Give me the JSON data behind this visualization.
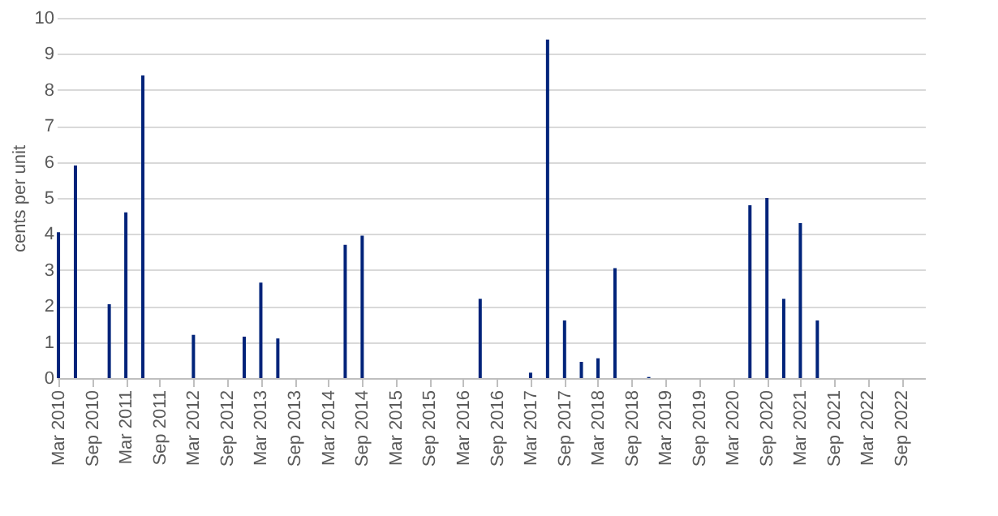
{
  "chart_data": {
    "type": "bar",
    "ylabel": "cents per unit",
    "x": [
      "2010-03",
      "2010-06",
      "2010-12",
      "2011-03",
      "2011-06",
      "2012-03",
      "2012-12",
      "2013-03",
      "2013-06",
      "2014-06",
      "2014-09",
      "2016-06",
      "2017-03",
      "2017-06",
      "2017-09",
      "2017-12",
      "2018-03",
      "2018-06",
      "2018-12",
      "2020-06",
      "2020-09",
      "2020-12",
      "2021-03",
      "2021-06"
    ],
    "values": [
      4.05,
      5.9,
      2.05,
      4.6,
      8.4,
      1.2,
      1.15,
      2.65,
      1.1,
      3.7,
      3.95,
      2.2,
      0.15,
      9.4,
      1.6,
      0.45,
      0.55,
      3.05,
      0.03,
      4.8,
      5.0,
      2.2,
      4.3,
      1.6
    ],
    "color": "#00237a",
    "xlim": [
      "2010-02-20",
      "2023-01-05"
    ],
    "xticks": [
      {
        "value": "2010-03",
        "label": "Mar 2010"
      },
      {
        "value": "2010-09",
        "label": "Sep 2010"
      },
      {
        "value": "2011-03",
        "label": "Mar 2011"
      },
      {
        "value": "2011-09",
        "label": "Sep 2011"
      },
      {
        "value": "2012-03",
        "label": "Mar 2012"
      },
      {
        "value": "2012-09",
        "label": "Sep 2012"
      },
      {
        "value": "2013-03",
        "label": "Mar 2013"
      },
      {
        "value": "2013-09",
        "label": "Sep 2013"
      },
      {
        "value": "2014-03",
        "label": "Mar 2014"
      },
      {
        "value": "2014-09",
        "label": "Sep 2014"
      },
      {
        "value": "2015-03",
        "label": "Mar 2015"
      },
      {
        "value": "2015-09",
        "label": "Sep 2015"
      },
      {
        "value": "2016-03",
        "label": "Mar 2016"
      },
      {
        "value": "2016-09",
        "label": "Sep 2016"
      },
      {
        "value": "2017-03",
        "label": "Mar 2017"
      },
      {
        "value": "2017-09",
        "label": "Sep 2017"
      },
      {
        "value": "2018-03",
        "label": "Mar 2018"
      },
      {
        "value": "2018-09",
        "label": "Sep 2018"
      },
      {
        "value": "2019-03",
        "label": "Mar 2019"
      },
      {
        "value": "2019-09",
        "label": "Sep 2019"
      },
      {
        "value": "2020-03",
        "label": "Mar 2020"
      },
      {
        "value": "2020-09",
        "label": "Sep 2020"
      },
      {
        "value": "2021-03",
        "label": "Mar 2021"
      },
      {
        "value": "2021-09",
        "label": "Sep 2021"
      },
      {
        "value": "2022-03",
        "label": "Mar 2022"
      },
      {
        "value": "2022-09",
        "label": "Sep 2022"
      }
    ],
    "ylim": [
      0,
      10
    ],
    "yticks": [
      0,
      1,
      2,
      3,
      4,
      5,
      6,
      7,
      8,
      9,
      10
    ],
    "grid": "y"
  }
}
